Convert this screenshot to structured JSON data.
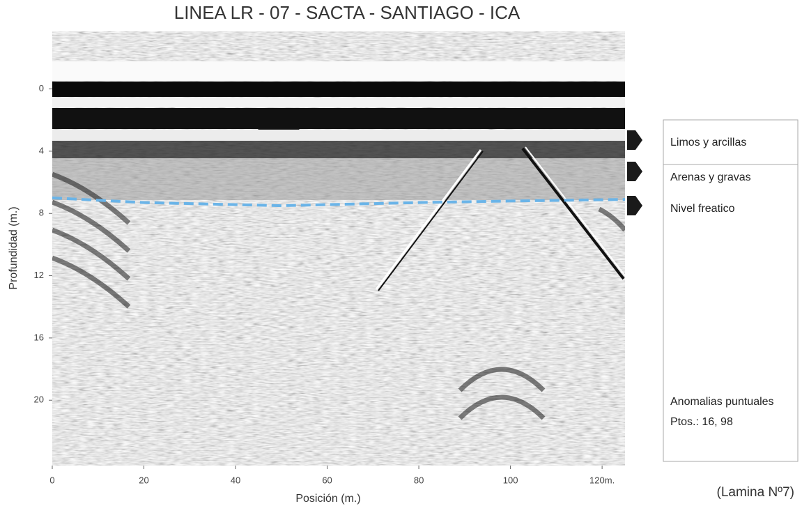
{
  "chart_data": {
    "type": "radargram",
    "title": "LINEA LR - 07 - SACTA - SANTIAGO - ICA",
    "xlabel": "Posición (m.)",
    "ylabel": "Profundidad (m.)",
    "xlim": [
      0,
      125
    ],
    "ylim": [
      -3.7,
      24.2
    ],
    "y_inverted": true,
    "xticks": [
      0,
      20,
      40,
      60,
      80,
      100,
      {
        "value": 120,
        "label": "120m."
      }
    ],
    "yticks": [
      0,
      4,
      8,
      12,
      16,
      20
    ],
    "series": [
      {
        "color": "#6ab4e8",
        "x": [
          0,
          20,
          50,
          80,
          100,
          125
        ],
        "values": [
          7.0,
          7.3,
          7.5,
          7.3,
          7.2,
          7.1
        ]
      }
    ],
    "annotations": [
      "Limos y arcillas",
      "Arenas y gravas",
      "Nivel freatico",
      "Anomalias puntuales",
      "Ptos.: 16, 98"
    ],
    "footer": "(Lamina Nº7)"
  }
}
